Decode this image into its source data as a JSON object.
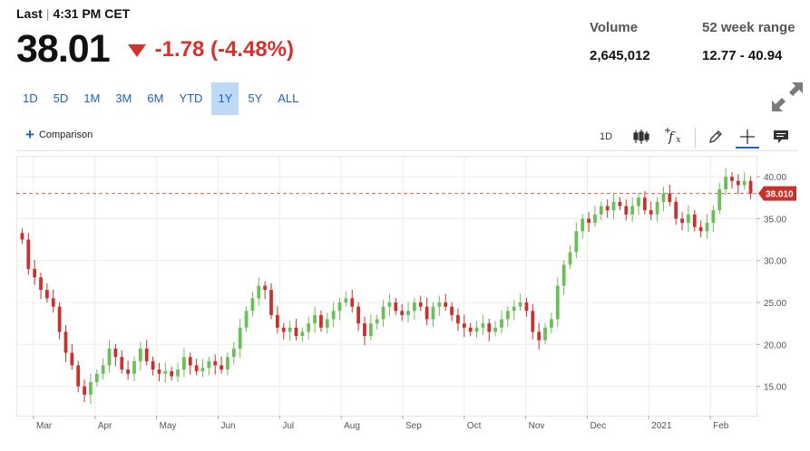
{
  "header": {
    "last_label": "Last",
    "separator": "|",
    "time": "4:31 PM CET",
    "price": "38.01",
    "change": "-1.78 (-4.48%)",
    "direction": "down"
  },
  "stats": {
    "volume_label": "Volume",
    "volume_value": "2,645,012",
    "range_label": "52 week range",
    "range_value": "12.77 - 40.94"
  },
  "ranges": [
    "1D",
    "5D",
    "1M",
    "3M",
    "6M",
    "YTD",
    "1Y",
    "5Y",
    "ALL"
  ],
  "active_range": "1Y",
  "toolbar": {
    "comparison": "Comparison",
    "interval": "1D",
    "icons": [
      "candlestick-icon",
      "function-icon",
      "pencil-icon",
      "crosshair-icon",
      "comment-icon"
    ]
  },
  "colors": {
    "up": "#6cbf58",
    "down": "#c8322c",
    "price_line": "#d9634a",
    "accent": "#1f63b6",
    "active_range_bg": "#bcdaf8"
  },
  "chart_data": {
    "type": "candlestick",
    "y_ticks": [
      "40.00",
      "35.00",
      "30.00",
      "25.00",
      "20.00",
      "15.00"
    ],
    "ylim": [
      11.5,
      42.5
    ],
    "x_ticks": [
      "Mar",
      "Apr",
      "May",
      "Jun",
      "Jul",
      "Aug",
      "Sep",
      "Oct",
      "Nov",
      "Dec",
      "2021",
      "Feb"
    ],
    "x_tick_months": [
      1,
      2,
      3,
      4,
      5,
      6,
      7,
      8,
      9,
      10,
      11,
      12
    ],
    "x_range_months": [
      0.72,
      12.75
    ],
    "last_price": 38.01,
    "last_price_label": "38.010",
    "grid": true,
    "closes": [
      32.5,
      29.0,
      28.0,
      26.5,
      25.5,
      24.5,
      21.5,
      19.0,
      17.5,
      15.0,
      14.0,
      15.5,
      16.5,
      17.5,
      19.5,
      18.5,
      17.0,
      16.5,
      18.0,
      19.5,
      18.0,
      17.0,
      16.5,
      16.8,
      16.2,
      17.0,
      18.5,
      17.5,
      16.8,
      17.2,
      18.0,
      17.5,
      17.0,
      18.5,
      19.5,
      22.0,
      24.0,
      25.5,
      27.0,
      26.5,
      23.5,
      22.0,
      21.5,
      22.0,
      21.0,
      21.5,
      22.5,
      23.5,
      22.0,
      23.0,
      24.0,
      25.0,
      25.5,
      24.5,
      22.5,
      21.0,
      22.5,
      23.0,
      24.5,
      25.0,
      24.0,
      23.5,
      24.0,
      25.0,
      24.5,
      23.0,
      24.5,
      25.0,
      24.5,
      23.5,
      22.5,
      22.0,
      21.5,
      22.0,
      22.5,
      21.5,
      22.0,
      23.0,
      24.0,
      24.5,
      25.0,
      24.0,
      21.5,
      20.5,
      22.0,
      23.0,
      27.0,
      29.5,
      31.0,
      33.5,
      35.0,
      34.5,
      35.5,
      36.5,
      36.0,
      37.0,
      36.5,
      35.5,
      36.5,
      37.5,
      36.0,
      35.5,
      37.0,
      38.0,
      37.0,
      35.0,
      34.5,
      35.5,
      34.0,
      33.5,
      34.5,
      36.0,
      38.5,
      40.0,
      39.5,
      39.0,
      39.5,
      38.01
    ]
  }
}
